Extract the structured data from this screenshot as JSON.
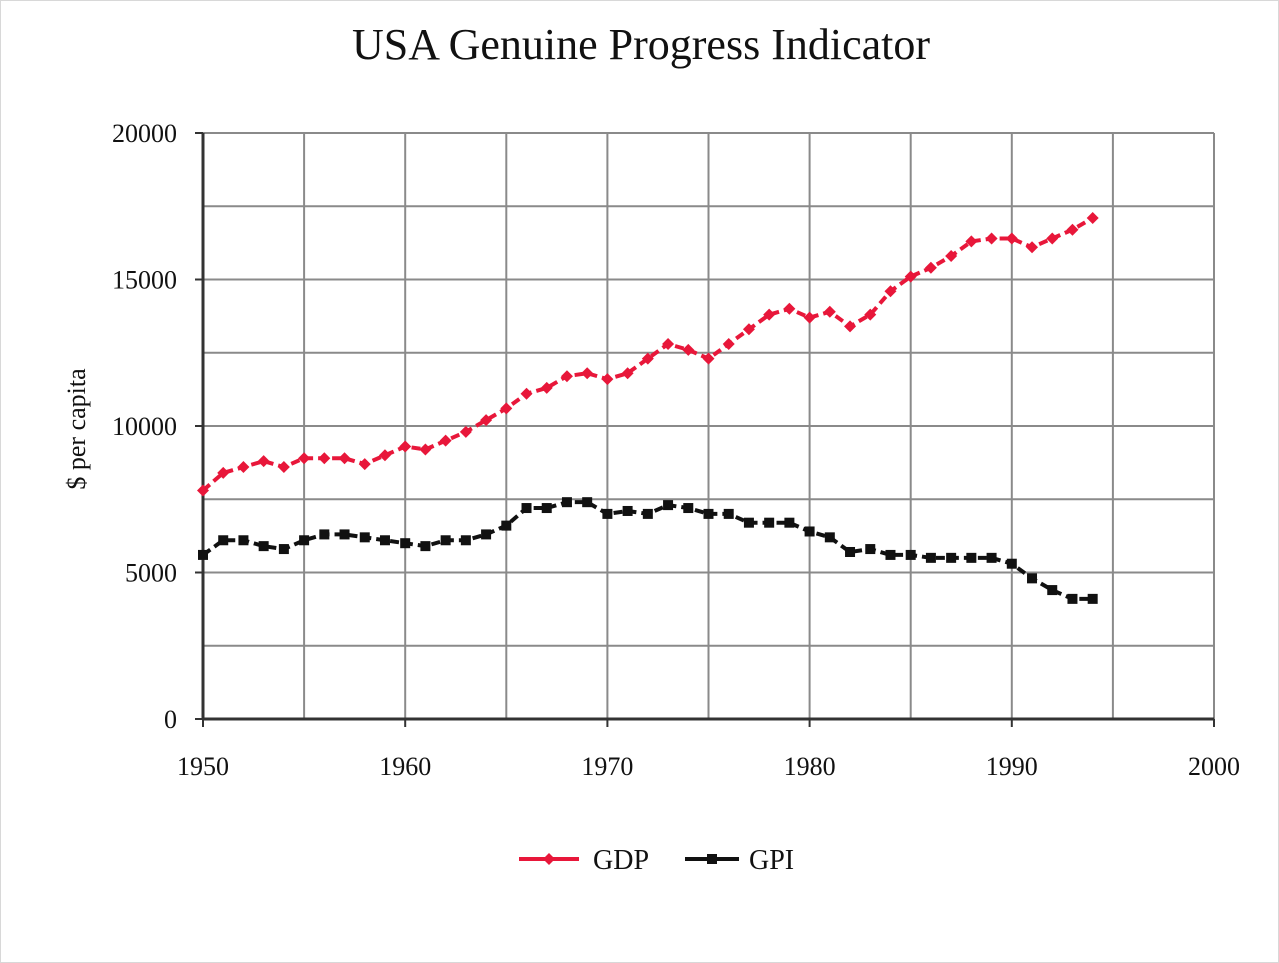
{
  "chart_data": {
    "type": "line",
    "title": "USA Genuine Progress Indicator",
    "xlabel": "",
    "ylabel": "$ per capita",
    "xlim": [
      1950,
      2000
    ],
    "ylim": [
      0,
      20000
    ],
    "xticks": [
      1950,
      1960,
      1970,
      1980,
      1990,
      2000
    ],
    "yticks": [
      0,
      5000,
      10000,
      15000,
      20000
    ],
    "grid": true,
    "legend_position": "bottom",
    "series": [
      {
        "name": "GDP",
        "color": "#e8173a",
        "marker": "diamond",
        "x": [
          1950,
          1951,
          1952,
          1953,
          1954,
          1955,
          1956,
          1957,
          1958,
          1959,
          1960,
          1961,
          1962,
          1963,
          1964,
          1965,
          1966,
          1967,
          1968,
          1969,
          1970,
          1971,
          1972,
          1973,
          1974,
          1975,
          1976,
          1977,
          1978,
          1979,
          1980,
          1981,
          1982,
          1983,
          1984,
          1985,
          1986,
          1987,
          1988,
          1989,
          1990,
          1991,
          1992,
          1993,
          1994
        ],
        "values": [
          7800,
          8400,
          8600,
          8800,
          8600,
          8900,
          8900,
          8900,
          8700,
          9000,
          9300,
          9200,
          9500,
          9800,
          10200,
          10600,
          11100,
          11300,
          11700,
          11800,
          11600,
          11800,
          12300,
          12800,
          12600,
          12300,
          12800,
          13300,
          13800,
          14000,
          13700,
          13900,
          13400,
          13800,
          14600,
          15100,
          15400,
          15800,
          16300,
          16400,
          16400,
          16100,
          16400,
          16700,
          17100
        ]
      },
      {
        "name": "GPI",
        "color": "#111111",
        "marker": "square",
        "x": [
          1950,
          1951,
          1952,
          1953,
          1954,
          1955,
          1956,
          1957,
          1958,
          1959,
          1960,
          1961,
          1962,
          1963,
          1964,
          1965,
          1966,
          1967,
          1968,
          1969,
          1970,
          1971,
          1972,
          1973,
          1974,
          1975,
          1976,
          1977,
          1978,
          1979,
          1980,
          1981,
          1982,
          1983,
          1984,
          1985,
          1986,
          1987,
          1988,
          1989,
          1990,
          1991,
          1992,
          1993,
          1994
        ],
        "values": [
          5600,
          6100,
          6100,
          5900,
          5800,
          6100,
          6300,
          6300,
          6200,
          6100,
          6000,
          5900,
          6100,
          6100,
          6300,
          6600,
          7200,
          7200,
          7400,
          7400,
          7000,
          7100,
          7000,
          7300,
          7200,
          7000,
          7000,
          6700,
          6700,
          6700,
          6400,
          6200,
          5700,
          5800,
          5600,
          5600,
          5500,
          5500,
          5500,
          5500,
          5300,
          4800,
          4400,
          4100,
          4100
        ]
      }
    ]
  }
}
